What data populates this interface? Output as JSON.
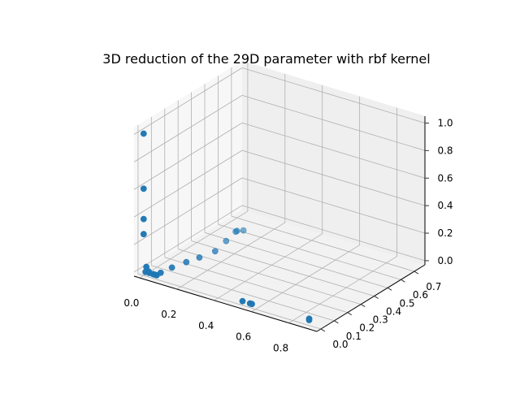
{
  "chart_data": {
    "type": "scatter",
    "projection": "3d",
    "title": "3D reduction of the 29D parameter with rbf kernel",
    "xlabel": "",
    "ylabel": "",
    "zlabel": "",
    "xlim": [
      -0.03,
      0.95
    ],
    "ylim": [
      -0.03,
      0.78
    ],
    "zlim": [
      -0.03,
      1.05
    ],
    "x_ticks": [
      0.0,
      0.2,
      0.4,
      0.6,
      0.8
    ],
    "x_tick_labels": [
      "0.0",
      "0.2",
      "0.4",
      "0.6",
      "0.8"
    ],
    "y_ticks": [
      0.0,
      0.1,
      0.2,
      0.3,
      0.4,
      0.5,
      0.6,
      0.7
    ],
    "y_tick_labels": [
      "0.0",
      "0.1",
      "0.2",
      "0.3",
      "0.4",
      "0.5",
      "0.6",
      "0.7"
    ],
    "z_ticks": [
      0.0,
      0.2,
      0.4,
      0.6,
      0.8,
      1.0
    ],
    "z_tick_labels": [
      "0.0",
      "0.2",
      "0.4",
      "0.6",
      "0.8",
      "1.0"
    ],
    "grid": true,
    "legend": "none",
    "marker_color": "#1f77b4",
    "points": [
      {
        "x": 0.0,
        "y": 0.0,
        "z": 1.0
      },
      {
        "x": 0.0,
        "y": 0.0,
        "z": 0.6
      },
      {
        "x": 0.0,
        "y": 0.0,
        "z": 0.38
      },
      {
        "x": 0.0,
        "y": 0.0,
        "z": 0.27
      },
      {
        "x": 0.0,
        "y": 0.02,
        "z": 0.02
      },
      {
        "x": 0.01,
        "y": 0.0,
        "z": 0.0
      },
      {
        "x": 0.02,
        "y": 0.01,
        "z": 0.0
      },
      {
        "x": 0.03,
        "y": 0.0,
        "z": 0.0
      },
      {
        "x": 0.05,
        "y": 0.0,
        "z": 0.0
      },
      {
        "x": 0.06,
        "y": 0.0,
        "z": 0.0
      },
      {
        "x": 0.07,
        "y": 0.03,
        "z": 0.0
      },
      {
        "x": 0.07,
        "y": 0.0,
        "z": 0.0
      },
      {
        "x": 0.08,
        "y": 0.1,
        "z": 0.0
      },
      {
        "x": 0.1,
        "y": 0.18,
        "z": 0.0
      },
      {
        "x": 0.12,
        "y": 0.25,
        "z": 0.0
      },
      {
        "x": 0.14,
        "y": 0.34,
        "z": 0.0
      },
      {
        "x": 0.12,
        "y": 0.45,
        "z": 0.0
      },
      {
        "x": 0.1,
        "y": 0.55,
        "z": 0.0
      },
      {
        "x": 0.1,
        "y": 0.56,
        "z": 0.0
      },
      {
        "x": 0.12,
        "y": 0.58,
        "z": 0.0
      },
      {
        "x": 0.53,
        "y": 0.0,
        "z": 0.0
      },
      {
        "x": 0.57,
        "y": 0.0,
        "z": 0.0
      },
      {
        "x": 0.58,
        "y": 0.0,
        "z": 0.0
      },
      {
        "x": 0.88,
        "y": 0.01,
        "z": 0.0
      },
      {
        "x": 0.88,
        "y": 0.01,
        "z": 0.01
      }
    ]
  }
}
